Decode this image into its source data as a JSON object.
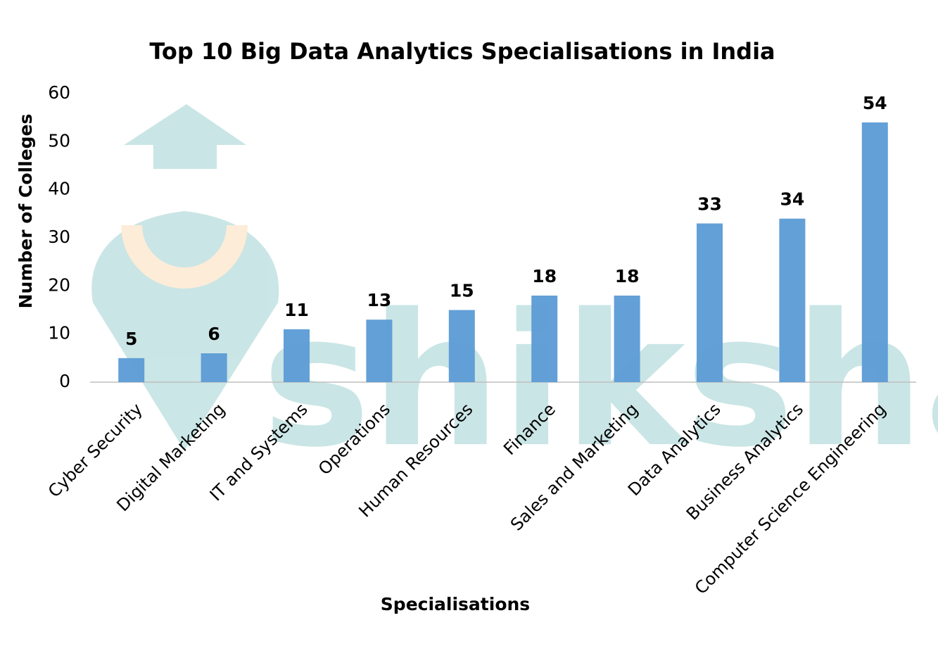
{
  "chart_data": {
    "type": "bar",
    "title": "Top 10 Big Data Analytics Specialisations in India",
    "x_label": "Specialisations",
    "y_label": "Number of Colleges",
    "watermark": "shiksha",
    "categories": [
      "Cyber Security",
      "Digital Marketing",
      "IT and Systems",
      "Operations",
      "Human Resources",
      "Finance",
      "Sales and Marketing",
      "Data Analytics",
      "Business Analytics",
      "Computer Science Engineering"
    ],
    "values": [
      5,
      6,
      11,
      13,
      15,
      18,
      18,
      33,
      34,
      54
    ],
    "color": "#5b9bd5",
    "ylim": [
      0,
      60
    ],
    "yticks": [
      0,
      10,
      20,
      30,
      40,
      50,
      60
    ],
    "grid": false
  }
}
